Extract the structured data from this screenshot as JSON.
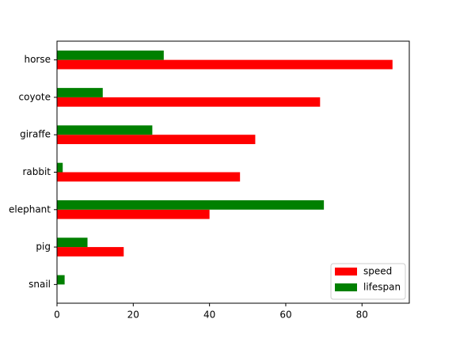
{
  "chart_data": {
    "type": "barh",
    "categories": [
      "snail",
      "pig",
      "elephant",
      "rabbit",
      "giraffe",
      "coyote",
      "horse"
    ],
    "series": [
      {
        "name": "speed",
        "color": "#ff0000",
        "values": [
          0.1,
          17.5,
          40,
          48,
          52,
          69,
          88
        ]
      },
      {
        "name": "lifespan",
        "color": "#008000",
        "values": [
          2,
          8,
          70,
          1.5,
          25,
          12,
          28
        ]
      }
    ],
    "xlim": [
      0,
      92.4
    ],
    "xticks": [
      0,
      20,
      40,
      60,
      80
    ],
    "grid": false,
    "legend": "lower right"
  }
}
